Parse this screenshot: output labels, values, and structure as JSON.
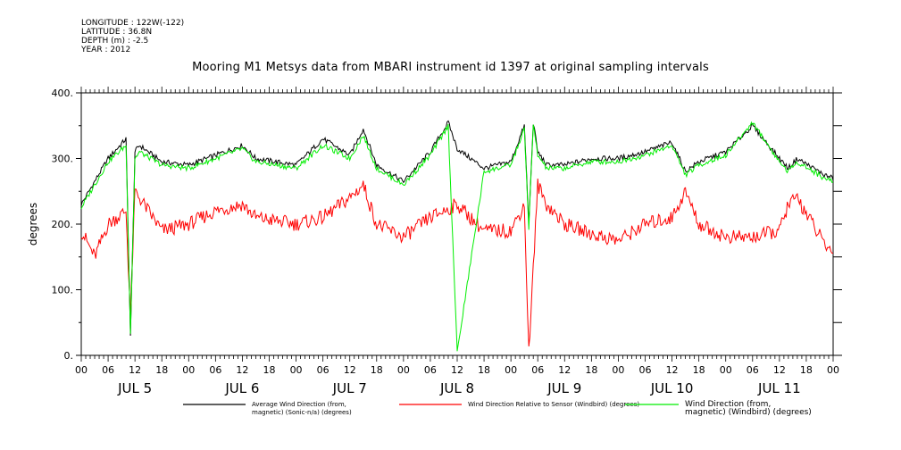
{
  "meta": {
    "longitude": "LONGITUDE : 122W(-122)",
    "latitude": "LATITUDE : 36.8N",
    "depth": "DEPTH (m) : -2.5",
    "year": "YEAR : 2012"
  },
  "chart_data": {
    "type": "line",
    "title": "Mooring M1 Metsys data from MBARI instrument id 1397 at original sampling intervals",
    "xlabel": "",
    "ylabel": "degrees",
    "ylim": [
      0,
      400
    ],
    "xlim_hours": [
      0,
      168
    ],
    "yticks": [
      "0.",
      "100.",
      "200.",
      "300.",
      "400."
    ],
    "x_hour_labels": [
      "00",
      "06",
      "12",
      "18",
      "00",
      "06",
      "12",
      "18",
      "00",
      "06",
      "12",
      "18",
      "00",
      "06",
      "12",
      "18",
      "00",
      "06",
      "12",
      "18",
      "00",
      "06",
      "12",
      "18",
      "00",
      "06",
      "12",
      "18",
      "00"
    ],
    "day_labels": [
      "JUL 5",
      "JUL 6",
      "JUL 7",
      "JUL 8",
      "JUL 9",
      "JUL 10",
      "JUL 11"
    ],
    "grid": false,
    "legend_position": "bottom",
    "series": [
      {
        "name": "Average Wind Direction (from, magnetic) (Sonic-n/a) (degrees)",
        "legend_lines": [
          "Average Wind Direction (from,",
          "magnetic) (Sonic-n/a) (degrees)"
        ],
        "color": "#000000",
        "x_hours": [
          0,
          6,
          10,
          11,
          12,
          13,
          18,
          24,
          30,
          36,
          39,
          48,
          54,
          60,
          63,
          66,
          72,
          78,
          82,
          84,
          90,
          96,
          99,
          100,
          101,
          102,
          104,
          108,
          114,
          120,
          126,
          132,
          135,
          138,
          144,
          150,
          156,
          158,
          160,
          166,
          168
        ],
        "values": [
          230,
          300,
          330,
          30,
          310,
          320,
          295,
          290,
          305,
          320,
          300,
          290,
          330,
          305,
          345,
          290,
          265,
          310,
          355,
          315,
          285,
          295,
          350,
          200,
          355,
          310,
          290,
          290,
          300,
          300,
          310,
          325,
          280,
          295,
          310,
          350,
          300,
          285,
          300,
          275,
          270
        ]
      },
      {
        "name": "Wind Direction Relative to Sensor (Windbird) (degrees)",
        "legend_lines": [
          "Wind Direction Relative to Sensor (Windbird) (degrees)"
        ],
        "color": "#ff0000",
        "x_hours": [
          0,
          3,
          6,
          10,
          11,
          12,
          14,
          18,
          24,
          30,
          36,
          39,
          48,
          54,
          60,
          63,
          66,
          72,
          78,
          84,
          90,
          96,
          99,
          100,
          102,
          104,
          108,
          114,
          120,
          126,
          132,
          135,
          138,
          144,
          150,
          156,
          158,
          160,
          166,
          168
        ],
        "values": [
          190,
          150,
          200,
          220,
          60,
          250,
          230,
          190,
          200,
          220,
          230,
          210,
          200,
          210,
          240,
          260,
          200,
          180,
          210,
          230,
          190,
          190,
          230,
          5,
          260,
          230,
          200,
          185,
          175,
          200,
          210,
          250,
          200,
          180,
          180,
          190,
          230,
          240,
          170,
          155
        ]
      },
      {
        "name": "Wind Direction (from, magnetic) (Windbird) (degrees)",
        "legend_lines": [
          "Wind Direction (from,",
          "magnetic) (Windbird) (degrees)"
        ],
        "color": "#00ee00",
        "x_hours": [
          0,
          6,
          10,
          11,
          12,
          13,
          18,
          24,
          30,
          36,
          39,
          48,
          54,
          60,
          63,
          66,
          72,
          78,
          82,
          84,
          90,
          96,
          99,
          100,
          101,
          102,
          104,
          108,
          114,
          120,
          126,
          132,
          135,
          138,
          144,
          150,
          156,
          158,
          160,
          166,
          168
        ],
        "values": [
          225,
          295,
          320,
          35,
          300,
          310,
          290,
          285,
          300,
          315,
          295,
          285,
          320,
          300,
          335,
          285,
          260,
          305,
          350,
          5,
          280,
          290,
          345,
          195,
          350,
          305,
          285,
          285,
          295,
          295,
          305,
          320,
          275,
          290,
          305,
          355,
          295,
          280,
          295,
          270,
          265
        ]
      }
    ]
  }
}
